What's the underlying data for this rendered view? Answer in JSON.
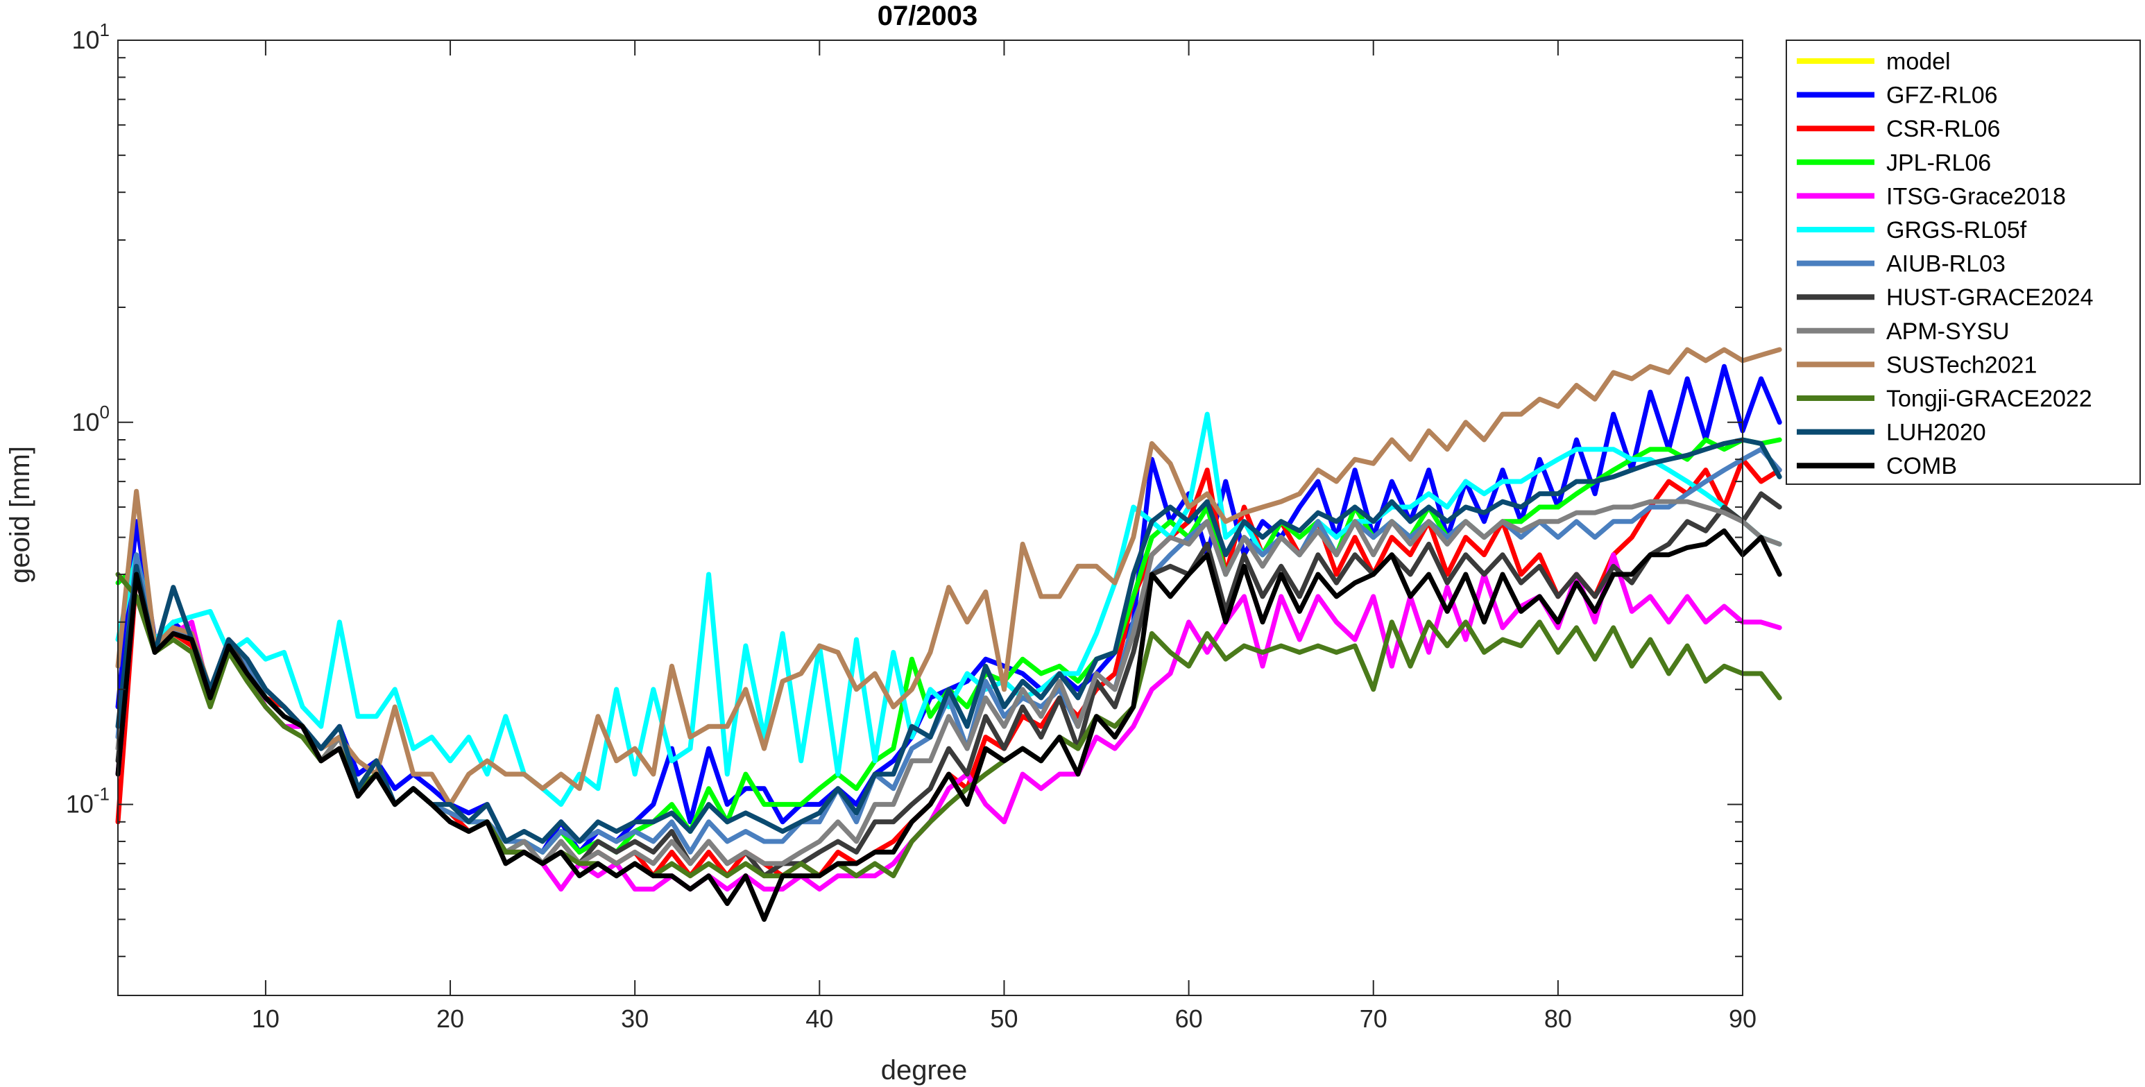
{
  "chart_data": {
    "type": "line",
    "title": "07/2003",
    "xlabel": "degree",
    "ylabel": "geoid [mm]",
    "xlim": [
      2,
      90
    ],
    "ylim": [
      0.03162,
      10
    ],
    "yscale": "log",
    "grid": false,
    "legend_position": "outside-right",
    "x_ticks": [
      10,
      20,
      30,
      40,
      50,
      60,
      70,
      80,
      90
    ],
    "x_tick_labels": [
      "10",
      "20",
      "30",
      "40",
      "50",
      "60",
      "70",
      "80",
      "90"
    ],
    "y_ticks": [
      0.1,
      1,
      10
    ],
    "y_tick_labels": [
      {
        "base": "10",
        "exp": "-1"
      },
      {
        "base": "10",
        "exp": "0"
      },
      {
        "base": "10",
        "exp": "1"
      }
    ],
    "x_start": 2,
    "series": [
      {
        "name": "model",
        "color": "#ffff00",
        "values": []
      },
      {
        "name": "GFZ-RL06",
        "color": "#0000ff",
        "values": [
          0.18,
          0.55,
          0.27,
          0.3,
          0.27,
          0.2,
          0.27,
          0.24,
          0.2,
          0.18,
          0.16,
          0.14,
          0.16,
          0.12,
          0.13,
          0.11,
          0.12,
          0.11,
          0.1,
          0.095,
          0.1,
          0.08,
          0.08,
          0.075,
          0.09,
          0.075,
          0.085,
          0.08,
          0.09,
          0.1,
          0.14,
          0.09,
          0.14,
          0.1,
          0.11,
          0.11,
          0.09,
          0.1,
          0.1,
          0.11,
          0.1,
          0.12,
          0.13,
          0.15,
          0.19,
          0.2,
          0.21,
          0.24,
          0.23,
          0.22,
          0.2,
          0.22,
          0.2,
          0.22,
          0.25,
          0.3,
          0.8,
          0.55,
          0.65,
          0.45,
          0.7,
          0.45,
          0.55,
          0.5,
          0.6,
          0.7,
          0.5,
          0.75,
          0.5,
          0.7,
          0.55,
          0.75,
          0.5,
          0.7,
          0.55,
          0.75,
          0.55,
          0.8,
          0.6,
          0.9,
          0.65,
          1.05,
          0.75,
          1.2,
          0.85,
          1.3,
          0.9,
          1.4,
          0.95,
          1.3,
          1.0
        ]
      },
      {
        "name": "CSR-RL06",
        "color": "#ff0000",
        "values": [
          0.09,
          0.4,
          0.25,
          0.28,
          0.26,
          0.19,
          0.26,
          0.23,
          0.19,
          0.18,
          0.16,
          0.13,
          0.15,
          0.11,
          0.12,
          0.1,
          0.11,
          0.1,
          0.095,
          0.085,
          0.09,
          0.075,
          0.075,
          0.07,
          0.08,
          0.07,
          0.075,
          0.07,
          0.075,
          0.065,
          0.075,
          0.065,
          0.075,
          0.065,
          0.075,
          0.07,
          0.065,
          0.07,
          0.065,
          0.075,
          0.07,
          0.075,
          0.08,
          0.09,
          0.1,
          0.12,
          0.11,
          0.15,
          0.14,
          0.17,
          0.16,
          0.19,
          0.17,
          0.2,
          0.22,
          0.35,
          0.45,
          0.5,
          0.55,
          0.75,
          0.4,
          0.6,
          0.45,
          0.55,
          0.45,
          0.55,
          0.4,
          0.5,
          0.4,
          0.5,
          0.45,
          0.55,
          0.4,
          0.5,
          0.45,
          0.55,
          0.4,
          0.45,
          0.35,
          0.4,
          0.35,
          0.45,
          0.5,
          0.6,
          0.7,
          0.65,
          0.75,
          0.6,
          0.8,
          0.7,
          0.75
        ]
      },
      {
        "name": "JPL-RL06",
        "color": "#00ff00",
        "values": [
          0.38,
          0.42,
          0.26,
          0.29,
          0.27,
          0.19,
          0.27,
          0.23,
          0.19,
          0.17,
          0.16,
          0.13,
          0.15,
          0.11,
          0.12,
          0.1,
          0.11,
          0.1,
          0.095,
          0.09,
          0.09,
          0.075,
          0.08,
          0.075,
          0.085,
          0.075,
          0.08,
          0.075,
          0.085,
          0.09,
          0.1,
          0.085,
          0.11,
          0.09,
          0.12,
          0.1,
          0.1,
          0.1,
          0.11,
          0.12,
          0.11,
          0.13,
          0.14,
          0.24,
          0.17,
          0.2,
          0.18,
          0.22,
          0.21,
          0.24,
          0.22,
          0.23,
          0.21,
          0.24,
          0.25,
          0.35,
          0.5,
          0.55,
          0.5,
          0.6,
          0.4,
          0.5,
          0.45,
          0.55,
          0.5,
          0.55,
          0.45,
          0.6,
          0.5,
          0.55,
          0.5,
          0.6,
          0.5,
          0.55,
          0.5,
          0.55,
          0.55,
          0.6,
          0.6,
          0.65,
          0.7,
          0.75,
          0.8,
          0.85,
          0.85,
          0.8,
          0.9,
          0.85,
          0.9,
          0.88,
          0.9
        ]
      },
      {
        "name": "ITSG-Grace2018",
        "color": "#ff00ff",
        "values": [
          0.12,
          0.4,
          0.25,
          0.28,
          0.3,
          0.19,
          0.26,
          0.22,
          0.18,
          0.16,
          0.16,
          0.13,
          0.14,
          0.11,
          0.12,
          0.1,
          0.11,
          0.1,
          0.09,
          0.085,
          0.09,
          0.075,
          0.075,
          0.07,
          0.06,
          0.07,
          0.065,
          0.07,
          0.06,
          0.06,
          0.065,
          0.06,
          0.065,
          0.06,
          0.065,
          0.06,
          0.06,
          0.065,
          0.06,
          0.065,
          0.065,
          0.065,
          0.07,
          0.08,
          0.09,
          0.11,
          0.12,
          0.1,
          0.09,
          0.12,
          0.11,
          0.12,
          0.12,
          0.15,
          0.14,
          0.16,
          0.2,
          0.22,
          0.3,
          0.25,
          0.3,
          0.35,
          0.23,
          0.35,
          0.27,
          0.35,
          0.3,
          0.27,
          0.35,
          0.23,
          0.35,
          0.25,
          0.37,
          0.27,
          0.4,
          0.29,
          0.33,
          0.35,
          0.29,
          0.4,
          0.3,
          0.45,
          0.32,
          0.35,
          0.3,
          0.35,
          0.3,
          0.33,
          0.3,
          0.3,
          0.29
        ]
      },
      {
        "name": "GRGS-RL05f",
        "color": "#00ffff",
        "values": [
          0.27,
          0.45,
          0.27,
          0.3,
          0.31,
          0.32,
          0.25,
          0.27,
          0.24,
          0.25,
          0.18,
          0.16,
          0.3,
          0.17,
          0.17,
          0.2,
          0.14,
          0.15,
          0.13,
          0.15,
          0.12,
          0.17,
          0.12,
          0.11,
          0.1,
          0.12,
          0.11,
          0.2,
          0.12,
          0.2,
          0.13,
          0.14,
          0.4,
          0.12,
          0.26,
          0.15,
          0.28,
          0.13,
          0.26,
          0.12,
          0.27,
          0.13,
          0.25,
          0.15,
          0.2,
          0.18,
          0.22,
          0.2,
          0.21,
          0.19,
          0.2,
          0.22,
          0.22,
          0.28,
          0.38,
          0.6,
          0.55,
          0.5,
          0.6,
          1.05,
          0.5,
          0.55,
          0.45,
          0.5,
          0.45,
          0.55,
          0.5,
          0.55,
          0.55,
          0.6,
          0.6,
          0.65,
          0.6,
          0.7,
          0.65,
          0.7,
          0.7,
          0.75,
          0.8,
          0.85,
          0.85,
          0.85,
          0.8,
          0.8,
          0.75,
          0.7,
          0.65,
          0.6,
          0.55,
          0.5,
          0.48
        ]
      },
      {
        "name": "AIUB-RL03",
        "color": "#4a7fbf",
        "values": [
          0.15,
          0.45,
          0.26,
          0.29,
          0.27,
          0.2,
          0.27,
          0.23,
          0.19,
          0.17,
          0.16,
          0.14,
          0.15,
          0.11,
          0.13,
          0.1,
          0.11,
          0.1,
          0.095,
          0.09,
          0.09,
          0.08,
          0.08,
          0.075,
          0.085,
          0.08,
          0.085,
          0.08,
          0.085,
          0.08,
          0.09,
          0.075,
          0.09,
          0.08,
          0.085,
          0.08,
          0.08,
          0.09,
          0.09,
          0.11,
          0.09,
          0.12,
          0.11,
          0.14,
          0.15,
          0.19,
          0.14,
          0.21,
          0.17,
          0.19,
          0.18,
          0.2,
          0.16,
          0.22,
          0.2,
          0.3,
          0.4,
          0.45,
          0.5,
          0.55,
          0.4,
          0.5,
          0.45,
          0.5,
          0.45,
          0.55,
          0.45,
          0.55,
          0.5,
          0.55,
          0.5,
          0.55,
          0.5,
          0.55,
          0.5,
          0.55,
          0.5,
          0.55,
          0.5,
          0.55,
          0.5,
          0.55,
          0.55,
          0.6,
          0.6,
          0.65,
          0.7,
          0.75,
          0.8,
          0.85,
          0.75
        ]
      },
      {
        "name": "HUST-GRACE2024",
        "color": "#3a3a3a",
        "values": [
          0.13,
          0.4,
          0.25,
          0.28,
          0.27,
          0.19,
          0.27,
          0.22,
          0.19,
          0.17,
          0.16,
          0.13,
          0.15,
          0.11,
          0.12,
          0.1,
          0.11,
          0.1,
          0.09,
          0.085,
          0.09,
          0.075,
          0.075,
          0.07,
          0.08,
          0.07,
          0.08,
          0.075,
          0.08,
          0.075,
          0.085,
          0.07,
          0.08,
          0.07,
          0.075,
          0.065,
          0.07,
          0.07,
          0.075,
          0.08,
          0.075,
          0.09,
          0.09,
          0.1,
          0.11,
          0.14,
          0.12,
          0.17,
          0.14,
          0.18,
          0.15,
          0.19,
          0.14,
          0.21,
          0.18,
          0.25,
          0.4,
          0.42,
          0.4,
          0.48,
          0.32,
          0.45,
          0.35,
          0.42,
          0.35,
          0.45,
          0.38,
          0.45,
          0.4,
          0.45,
          0.4,
          0.48,
          0.38,
          0.45,
          0.4,
          0.45,
          0.38,
          0.42,
          0.35,
          0.4,
          0.35,
          0.42,
          0.38,
          0.45,
          0.48,
          0.55,
          0.52,
          0.6,
          0.55,
          0.65,
          0.6
        ]
      },
      {
        "name": "APM-SYSU",
        "color": "#808080",
        "values": [
          0.14,
          0.4,
          0.25,
          0.28,
          0.27,
          0.19,
          0.26,
          0.22,
          0.19,
          0.17,
          0.16,
          0.13,
          0.15,
          0.11,
          0.12,
          0.1,
          0.11,
          0.1,
          0.09,
          0.085,
          0.09,
          0.075,
          0.08,
          0.07,
          0.08,
          0.07,
          0.075,
          0.07,
          0.075,
          0.07,
          0.08,
          0.07,
          0.08,
          0.07,
          0.075,
          0.07,
          0.07,
          0.075,
          0.08,
          0.09,
          0.08,
          0.1,
          0.1,
          0.13,
          0.13,
          0.17,
          0.14,
          0.19,
          0.16,
          0.2,
          0.17,
          0.21,
          0.16,
          0.22,
          0.2,
          0.28,
          0.45,
          0.5,
          0.48,
          0.55,
          0.4,
          0.5,
          0.42,
          0.5,
          0.45,
          0.52,
          0.45,
          0.55,
          0.45,
          0.55,
          0.48,
          0.55,
          0.48,
          0.55,
          0.5,
          0.55,
          0.52,
          0.55,
          0.55,
          0.58,
          0.58,
          0.6,
          0.6,
          0.62,
          0.62,
          0.62,
          0.6,
          0.58,
          0.55,
          0.5,
          0.48
        ]
      },
      {
        "name": "SUSTech2021",
        "color": "#b5835a",
        "values": [
          0.23,
          0.66,
          0.26,
          0.29,
          0.28,
          0.2,
          0.27,
          0.24,
          0.2,
          0.18,
          0.16,
          0.14,
          0.15,
          0.13,
          0.12,
          0.18,
          0.12,
          0.12,
          0.1,
          0.12,
          0.13,
          0.12,
          0.12,
          0.11,
          0.12,
          0.11,
          0.17,
          0.13,
          0.14,
          0.12,
          0.23,
          0.15,
          0.16,
          0.16,
          0.2,
          0.14,
          0.21,
          0.22,
          0.26,
          0.25,
          0.2,
          0.22,
          0.18,
          0.2,
          0.25,
          0.37,
          0.3,
          0.36,
          0.2,
          0.48,
          0.35,
          0.35,
          0.42,
          0.42,
          0.38,
          0.5,
          0.88,
          0.78,
          0.6,
          0.65,
          0.55,
          0.58,
          0.6,
          0.62,
          0.65,
          0.75,
          0.7,
          0.8,
          0.78,
          0.9,
          0.8,
          0.95,
          0.85,
          1.0,
          0.9,
          1.05,
          1.05,
          1.15,
          1.1,
          1.25,
          1.15,
          1.35,
          1.3,
          1.4,
          1.35,
          1.55,
          1.45,
          1.55,
          1.45,
          1.5,
          1.55
        ]
      },
      {
        "name": "Tongji-GRACE2022",
        "color": "#4a7a1a",
        "values": [
          0.4,
          0.35,
          0.25,
          0.27,
          0.25,
          0.18,
          0.25,
          0.21,
          0.18,
          0.16,
          0.15,
          0.13,
          0.14,
          0.11,
          0.12,
          0.1,
          0.11,
          0.1,
          0.09,
          0.085,
          0.09,
          0.075,
          0.075,
          0.07,
          0.075,
          0.07,
          0.07,
          0.065,
          0.07,
          0.065,
          0.07,
          0.065,
          0.07,
          0.065,
          0.07,
          0.065,
          0.065,
          0.07,
          0.065,
          0.07,
          0.065,
          0.07,
          0.065,
          0.08,
          0.09,
          0.1,
          0.11,
          0.12,
          0.13,
          0.14,
          0.13,
          0.15,
          0.14,
          0.17,
          0.16,
          0.18,
          0.28,
          0.25,
          0.23,
          0.28,
          0.24,
          0.26,
          0.25,
          0.26,
          0.25,
          0.26,
          0.25,
          0.26,
          0.2,
          0.3,
          0.23,
          0.3,
          0.26,
          0.3,
          0.25,
          0.27,
          0.26,
          0.3,
          0.25,
          0.29,
          0.24,
          0.29,
          0.23,
          0.27,
          0.22,
          0.26,
          0.21,
          0.23,
          0.22,
          0.22,
          0.19
        ]
      },
      {
        "name": "LUH2020",
        "color": "#0a4a70",
        "values": [
          0.16,
          0.42,
          0.25,
          0.37,
          0.27,
          0.2,
          0.27,
          0.24,
          0.2,
          0.18,
          0.16,
          0.14,
          0.16,
          0.11,
          0.13,
          0.1,
          0.11,
          0.1,
          0.1,
          0.09,
          0.1,
          0.08,
          0.085,
          0.08,
          0.09,
          0.08,
          0.09,
          0.085,
          0.09,
          0.09,
          0.095,
          0.085,
          0.1,
          0.09,
          0.095,
          0.09,
          0.085,
          0.09,
          0.095,
          0.11,
          0.095,
          0.12,
          0.12,
          0.16,
          0.15,
          0.2,
          0.16,
          0.23,
          0.18,
          0.21,
          0.19,
          0.22,
          0.19,
          0.24,
          0.25,
          0.4,
          0.55,
          0.6,
          0.55,
          0.62,
          0.45,
          0.55,
          0.5,
          0.55,
          0.52,
          0.58,
          0.55,
          0.6,
          0.55,
          0.62,
          0.55,
          0.6,
          0.55,
          0.6,
          0.58,
          0.62,
          0.6,
          0.65,
          0.65,
          0.7,
          0.7,
          0.72,
          0.75,
          0.78,
          0.8,
          0.82,
          0.85,
          0.88,
          0.9,
          0.88,
          0.72
        ]
      },
      {
        "name": "COMB",
        "color": "#000000",
        "values": [
          0.12,
          0.4,
          0.25,
          0.28,
          0.27,
          0.19,
          0.26,
          0.22,
          0.19,
          0.17,
          0.16,
          0.13,
          0.14,
          0.105,
          0.12,
          0.1,
          0.11,
          0.1,
          0.09,
          0.085,
          0.09,
          0.07,
          0.075,
          0.07,
          0.075,
          0.065,
          0.07,
          0.065,
          0.07,
          0.065,
          0.065,
          0.06,
          0.065,
          0.055,
          0.065,
          0.05,
          0.065,
          0.065,
          0.065,
          0.07,
          0.07,
          0.075,
          0.075,
          0.09,
          0.1,
          0.12,
          0.1,
          0.14,
          0.13,
          0.14,
          0.13,
          0.15,
          0.12,
          0.17,
          0.15,
          0.18,
          0.4,
          0.35,
          0.4,
          0.45,
          0.3,
          0.42,
          0.3,
          0.4,
          0.32,
          0.4,
          0.35,
          0.38,
          0.4,
          0.45,
          0.35,
          0.4,
          0.32,
          0.4,
          0.3,
          0.4,
          0.32,
          0.35,
          0.3,
          0.38,
          0.32,
          0.4,
          0.4,
          0.45,
          0.45,
          0.47,
          0.48,
          0.52,
          0.45,
          0.5,
          0.4
        ]
      }
    ]
  }
}
